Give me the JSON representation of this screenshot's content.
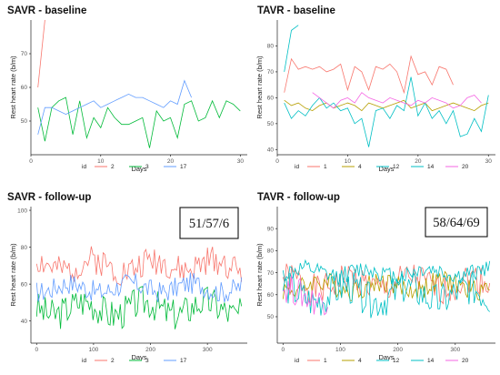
{
  "colors": {
    "id1": "#f8766d",
    "id2": "#f8766d",
    "id3": "#00ba38",
    "id4": "#b79f00",
    "id12": "#00bfc4",
    "id14": "#00bfc4",
    "id17": "#619cff",
    "id20": "#f564e3"
  },
  "chart_data": [
    {
      "type": "line",
      "title": "SAVR - baseline",
      "xlabel": "Days",
      "ylabel": "Rest heart rate (b/m)",
      "xlim": [
        0,
        31
      ],
      "ylim": [
        40,
        80
      ],
      "xticks": [
        "0",
        "10",
        "20",
        "30"
      ],
      "yticks": [
        "50",
        "60",
        "70"
      ],
      "grid": false,
      "legend_title": "id",
      "legend": [
        "2",
        "3",
        "17"
      ],
      "series": [
        {
          "name": "2",
          "x": [
            1,
            2
          ],
          "values": [
            60,
            80
          ],
          "color": "#f8766d"
        },
        {
          "name": "3",
          "x": [
            1,
            2,
            3,
            4,
            5,
            6,
            7,
            8,
            9,
            10,
            11,
            12,
            13,
            14,
            15,
            16,
            17,
            18,
            19,
            20,
            21,
            22,
            23,
            24,
            25,
            26,
            27,
            28,
            29,
            30
          ],
          "values": [
            54,
            44,
            54,
            56,
            57,
            46,
            56,
            45,
            51,
            48,
            54,
            51,
            49,
            49,
            50,
            51,
            42,
            53,
            50,
            51,
            45,
            55,
            56,
            50,
            51,
            56,
            51,
            56,
            55,
            53
          ],
          "color": "#00ba38"
        },
        {
          "name": "17",
          "x": [
            1,
            2,
            3,
            4,
            5,
            6,
            7,
            8,
            9,
            10,
            11,
            12,
            13,
            14,
            15,
            16,
            17,
            18,
            19,
            20,
            21,
            22,
            23
          ],
          "values": [
            46,
            54,
            54,
            53,
            52,
            53,
            54,
            55,
            56,
            54,
            55,
            56,
            57,
            58,
            57,
            57,
            56,
            55,
            54,
            56,
            55,
            62,
            57
          ],
          "color": "#619cff"
        }
      ]
    },
    {
      "type": "line",
      "title": "TAVR - baseline",
      "xlabel": "Days",
      "ylabel": "Rest heart rate (b/m)",
      "xlim": [
        0,
        31
      ],
      "ylim": [
        38,
        90
      ],
      "xticks": [
        "0",
        "10",
        "20",
        "30"
      ],
      "yticks": [
        "40",
        "50",
        "60",
        "70",
        "80"
      ],
      "grid": false,
      "legend_title": "id",
      "legend": [
        "1",
        "4",
        "12",
        "14",
        "20"
      ],
      "series": [
        {
          "name": "1",
          "x": [
            1,
            2,
            3,
            4,
            5,
            6,
            7,
            8,
            9,
            10,
            11,
            12,
            13,
            14,
            15,
            16,
            17,
            18,
            19,
            20,
            21,
            22,
            23,
            24,
            25
          ],
          "values": [
            62,
            75,
            71,
            72,
            71,
            72,
            70,
            71,
            73,
            63,
            72,
            70,
            63,
            72,
            71,
            73,
            70,
            62,
            76,
            69,
            70,
            65,
            72,
            71,
            65
          ],
          "color": "#f8766d"
        },
        {
          "name": "4",
          "x": [
            1,
            2,
            3,
            4,
            5,
            6,
            7,
            8,
            9,
            10,
            11,
            12,
            13,
            14,
            15,
            16,
            17,
            18,
            19,
            20,
            21,
            22,
            23,
            24,
            25,
            26,
            27,
            28,
            29,
            30
          ],
          "values": [
            59,
            57,
            58,
            56,
            55,
            57,
            58,
            56,
            57,
            58,
            57,
            55,
            58,
            57,
            56,
            57,
            58,
            59,
            56,
            57,
            58,
            55,
            56,
            57,
            58,
            57,
            56,
            55,
            57,
            58
          ],
          "color": "#b79f00"
        },
        {
          "name": "12",
          "x": [
            1,
            2,
            3
          ],
          "values": [
            70,
            86,
            88
          ],
          "color": "#00bfc4"
        },
        {
          "name": "14",
          "x": [
            1,
            2,
            3,
            4,
            5,
            6,
            7,
            8,
            9,
            10,
            11,
            12,
            13,
            14,
            15,
            16,
            17,
            18,
            19,
            20,
            21,
            22,
            23,
            24,
            25,
            26,
            27,
            28,
            29,
            30
          ],
          "values": [
            58,
            52,
            55,
            53,
            57,
            60,
            56,
            58,
            55,
            56,
            50,
            52,
            41,
            55,
            56,
            52,
            57,
            55,
            68,
            53,
            58,
            52,
            55,
            50,
            55,
            45,
            46,
            52,
            47,
            61
          ],
          "color": "#00bfc4"
        },
        {
          "name": "20",
          "x": [
            5,
            6,
            7,
            8,
            9,
            10,
            11,
            12,
            13,
            14,
            15,
            16,
            17,
            18,
            19,
            20,
            21,
            22,
            23,
            24,
            25,
            26,
            27,
            28,
            29
          ],
          "values": [
            62,
            60,
            58,
            56,
            59,
            60,
            58,
            62,
            60,
            59,
            58,
            60,
            59,
            58,
            57,
            59,
            58,
            60,
            59,
            58,
            56,
            57,
            60,
            61,
            58
          ],
          "color": "#f564e3"
        }
      ]
    },
    {
      "type": "line",
      "title": "SAVR - follow-up",
      "xlabel": "Days",
      "ylabel": "Rest heart rate (b/m)",
      "xlim": [
        -10,
        370
      ],
      "ylim": [
        28,
        102
      ],
      "xticks": [
        "0",
        "100",
        "200",
        "300"
      ],
      "yticks": [
        "40",
        "60",
        "80",
        "100"
      ],
      "grid": false,
      "legend_title": "id",
      "legend": [
        "2",
        "3",
        "17"
      ],
      "annotation": "51/57/6",
      "series": [
        {
          "name": "2",
          "generated": {
            "start": 0,
            "end": 360,
            "step": 3,
            "base": 70,
            "amp": 8,
            "seed": 2
          },
          "color": "#f8766d"
        },
        {
          "name": "3",
          "generated": {
            "start": 0,
            "end": 360,
            "step": 3,
            "base": 47,
            "amp": 9,
            "seed": 3
          },
          "color": "#00ba38"
        },
        {
          "name": "17",
          "generated": {
            "start": 0,
            "end": 360,
            "step": 3,
            "base": 58,
            "amp": 6,
            "seed": 17
          },
          "color": "#619cff"
        }
      ]
    },
    {
      "type": "line",
      "title": "TAVR - follow-up",
      "xlabel": "Days",
      "ylabel": "Rest heart rate (b/m)",
      "xlim": [
        -10,
        370
      ],
      "ylim": [
        38,
        100
      ],
      "xticks": [
        "0",
        "100",
        "200",
        "300"
      ],
      "yticks": [
        "50",
        "60",
        "70",
        "80",
        "90"
      ],
      "grid": false,
      "legend_title": "id",
      "legend": [
        "1",
        "4",
        "12",
        "14",
        "20"
      ],
      "annotation": "58/64/69",
      "series": [
        {
          "name": "1",
          "generated": {
            "start": 0,
            "end": 360,
            "step": 3,
            "base": 65,
            "amp": 7,
            "seed": 1
          },
          "color": "#f8766d"
        },
        {
          "name": "4",
          "generated": {
            "start": 0,
            "end": 360,
            "step": 3,
            "base": 64,
            "amp": 5,
            "seed": 4
          },
          "color": "#b79f00"
        },
        {
          "name": "12",
          "generated": {
            "start": 0,
            "end": 360,
            "step": 3,
            "base": 70,
            "amp": 4,
            "seed": 12
          },
          "color": "#00bfc4"
        },
        {
          "name": "14",
          "generated": {
            "start": 0,
            "end": 360,
            "step": 3,
            "base": 60,
            "amp": 8,
            "seed": 14
          },
          "color": "#00bfc4"
        },
        {
          "name": "20",
          "generated": {
            "start": 0,
            "end": 80,
            "step": 3,
            "base": 60,
            "amp": 7,
            "seed": 20
          },
          "color": "#f564e3"
        }
      ]
    }
  ]
}
